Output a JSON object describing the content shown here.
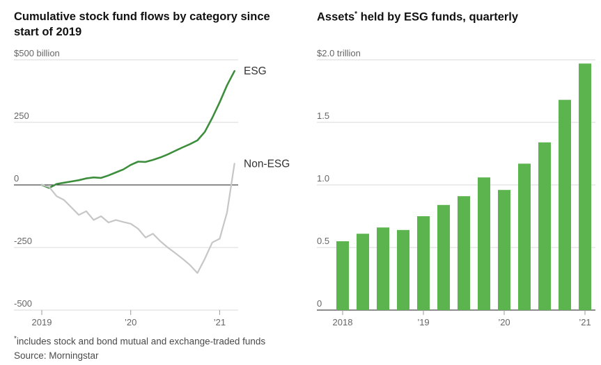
{
  "footnote": {
    "mark": "*",
    "text": "includes stock and bond mutual and exchange-traded funds"
  },
  "source": "Source: Morningstar",
  "colors": {
    "esg_line": "#3c8e3c",
    "non_esg_line": "#c6c6c6",
    "bar": "#5cb44e",
    "grid": "#d9d9d9",
    "axis": "#1a1a1a",
    "tick_label": "#666666",
    "series_label": "#333333",
    "tick_mark": "#999999"
  },
  "chart_data": [
    {
      "type": "line",
      "title": "Cumulative stock fund flows by category since start of 2019",
      "ylabel": "$ billion, cumulative flows",
      "ylim": [
        -500,
        500
      ],
      "xmax": 26.5,
      "x_unit": "months since Jan 2019",
      "grid": true,
      "yticks": [
        {
          "v": 500,
          "label": "$500 billion"
        },
        {
          "v": 250,
          "label": "250"
        },
        {
          "v": 0,
          "label": "0"
        },
        {
          "v": -250,
          "label": "-250"
        },
        {
          "v": -500,
          "label": "-500"
        }
      ],
      "xticks": [
        {
          "m": 0,
          "label": "2019"
        },
        {
          "m": 12,
          "label": "’20"
        },
        {
          "m": 24,
          "label": "’21"
        }
      ],
      "series": [
        {
          "name": "ESG",
          "color_key": "esg_line",
          "width": 2.6,
          "values": [
            0,
            -12,
            4,
            9,
            14,
            19,
            26,
            30,
            28,
            38,
            50,
            62,
            80,
            93,
            92,
            100,
            110,
            122,
            136,
            150,
            163,
            178,
            212,
            268,
            330,
            398,
            455
          ]
        },
        {
          "name": "Non-ESG",
          "color_key": "non_esg_line",
          "width": 2.2,
          "values": [
            0,
            -8,
            -45,
            -60,
            -90,
            -120,
            -105,
            -140,
            -125,
            -150,
            -140,
            -148,
            -155,
            -175,
            -210,
            -195,
            -225,
            -250,
            -272,
            -295,
            -320,
            -352,
            -295,
            -230,
            -215,
            -110,
            85
          ]
        }
      ]
    },
    {
      "type": "bar",
      "title_parts": {
        "prefix": "Assets",
        "mark": "*",
        "rest": " held by ESG funds, quarterly"
      },
      "ylabel": "$ trillion",
      "ylim": [
        0,
        2
      ],
      "grid": true,
      "yticks": [
        {
          "v": 2,
          "label": "$2.0 trillion"
        },
        {
          "v": 1.5,
          "label": "1.5"
        },
        {
          "v": 1,
          "label": "1.0"
        },
        {
          "v": 0.5,
          "label": "0.5"
        },
        {
          "v": 0,
          "label": "0"
        }
      ],
      "categories": [
        "2018 Q1",
        "2018 Q2",
        "2018 Q3",
        "2018 Q4",
        "2019 Q1",
        "2019 Q2",
        "2019 Q3",
        "2019 Q4",
        "2020 Q1",
        "2020 Q2",
        "2020 Q3",
        "2020 Q4",
        "2021 Q1"
      ],
      "values": [
        0.55,
        0.61,
        0.66,
        0.64,
        0.75,
        0.84,
        0.91,
        1.06,
        0.96,
        1.17,
        1.34,
        1.68,
        1.97
      ],
      "xticks": [
        {
          "i": 0,
          "label": "2018"
        },
        {
          "i": 4,
          "label": "’19"
        },
        {
          "i": 8,
          "label": "’20"
        },
        {
          "i": 12,
          "label": "’21"
        }
      ]
    }
  ]
}
